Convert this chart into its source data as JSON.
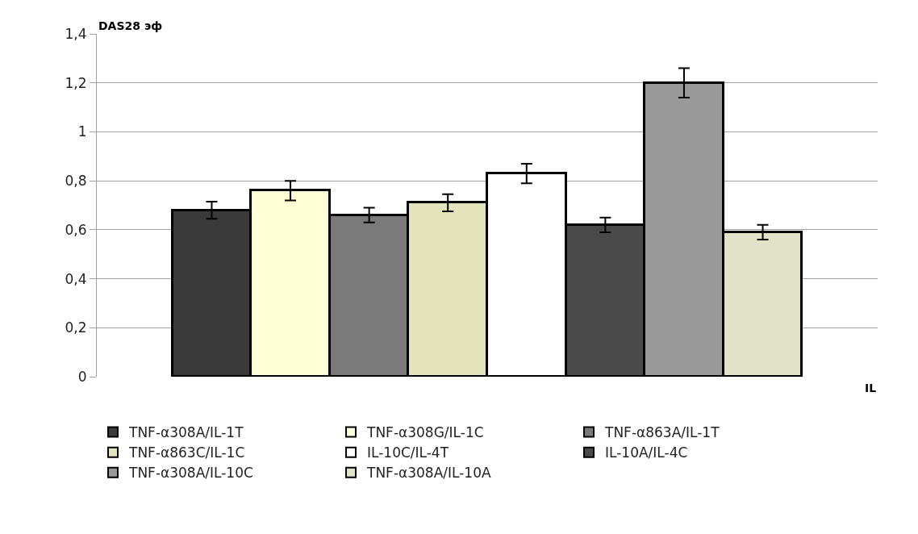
{
  "chart_data": {
    "type": "bar",
    "xlabel": "IL",
    "ylabel": "DAS28 эф",
    "categories": [
      null
    ],
    "series": [
      {
        "name": "TNF-α308A/IL-1T",
        "color": "#3a3a3a",
        "values": [
          0.68
        ],
        "errors": [
          0.035
        ]
      },
      {
        "name": "TNF-α308G/IL-1C",
        "color": "#ffffd8",
        "values": [
          0.76
        ],
        "errors": [
          0.04
        ]
      },
      {
        "name": "TNF-α863A/IL-1T",
        "color": "#7a7a7a",
        "values": [
          0.66
        ],
        "errors": [
          0.03
        ]
      },
      {
        "name": "TNF-α863C/IL-1C",
        "color": "#e4e4bc",
        "values": [
          0.71
        ],
        "errors": [
          0.035
        ]
      },
      {
        "name": "IL-10C/IL-4T",
        "color": "#ffffff",
        "values": [
          0.83
        ],
        "errors": [
          0.04
        ]
      },
      {
        "name": "IL-10A/IL-4C",
        "color": "#4a4a4a",
        "values": [
          0.62
        ],
        "errors": [
          0.03
        ]
      },
      {
        "name": "TNF-α308A/IL-10C",
        "color": "#999999",
        "values": [
          1.2
        ],
        "errors": [
          0.06
        ]
      },
      {
        "name": "TNF-α308A/IL-10A",
        "color": "#e2e2c8",
        "values": [
          0.59
        ],
        "errors": [
          0.03
        ]
      }
    ],
    "ylim": [
      0,
      1.4
    ],
    "yticks": [
      0,
      {
        "value": 0.2,
        "label": "0,2"
      },
      {
        "value": 0.4,
        "label": "0,4"
      },
      {
        "value": 0.6,
        "label": "0,6"
      },
      {
        "value": 0.8,
        "label": "0,8"
      },
      1,
      {
        "value": 1.2,
        "label": "1,2"
      },
      {
        "value": 1.4,
        "label": "1,4"
      }
    ],
    "grid": "y",
    "legend": "bottom"
  }
}
